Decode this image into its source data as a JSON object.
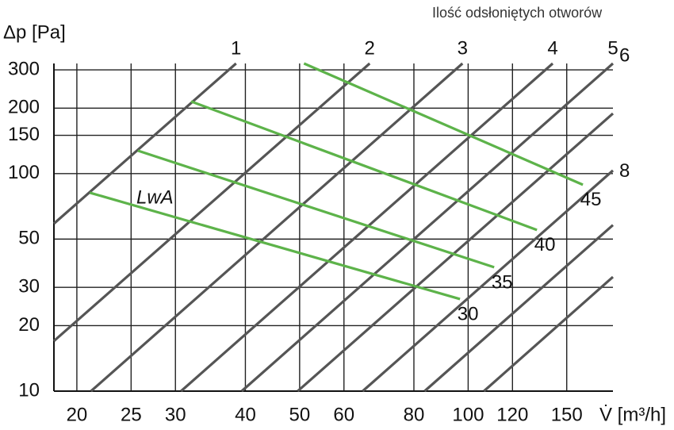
{
  "chart_data": {
    "type": "line",
    "annotation": "Ilość odsłoniętych otworów",
    "y_label": "Δp [Pa]",
    "x_label": "V̇ [m³/h]",
    "curve_label": "LwA",
    "xlog": true,
    "ylog": true,
    "grid": true,
    "xlim": [
      18.2,
      181.4
    ],
    "ylim": [
      10,
      321
    ],
    "xticks": [
      20,
      25,
      30,
      40,
      50,
      60,
      80,
      100,
      120,
      150
    ],
    "yticks": [
      10,
      20,
      30,
      50,
      100,
      150,
      200,
      300
    ],
    "series": [
      {
        "name": "1",
        "color": "#555555",
        "x": [
          18.2,
          38.5
        ],
        "values": [
          58.9,
          321
        ]
      },
      {
        "name": "2",
        "color": "#555555",
        "x": [
          18.2,
          66.7
        ],
        "values": [
          17,
          321
        ]
      },
      {
        "name": "3",
        "color": "#555555",
        "x": [
          21.2,
          97.7
        ],
        "values": [
          10,
          321
        ]
      },
      {
        "name": "4",
        "color": "#555555",
        "x": [
          30.7,
          141.6
        ],
        "values": [
          10,
          321
        ]
      },
      {
        "name": "5",
        "color": "#555555",
        "x": [
          39.4,
          181.4
        ],
        "values": [
          10,
          321
        ]
      },
      {
        "name": "6",
        "color": "#555555",
        "x": [
          49.6,
          181.4
        ],
        "values": [
          10,
          189
        ]
      },
      {
        "name": "8",
        "color": "#555555",
        "x": [
          64.8,
          181.4
        ],
        "values": [
          10,
          103.4
        ]
      },
      {
        "color": "#555555",
        "x": [
          83.6,
          181.4
        ],
        "values": [
          10,
          58
        ]
      },
      {
        "color": "#555555",
        "x": [
          106.7,
          181.4
        ],
        "values": [
          10,
          33.5
        ]
      },
      {
        "name": "45",
        "color": "#5db34a",
        "x": [
          50.9,
          160.3
        ],
        "values": [
          321,
          88.9
        ]
      },
      {
        "name": "40",
        "color": "#5db34a",
        "x": [
          32.0,
          132.7
        ],
        "values": [
          214.7,
          55.1
        ]
      },
      {
        "name": "35",
        "color": "#5db34a",
        "x": [
          25.7,
          111.3
        ],
        "values": [
          127.6,
          37.1
        ]
      },
      {
        "name": "30",
        "color": "#5db34a",
        "x": [
          21.1,
          96.7
        ],
        "values": [
          81.7,
          26.5
        ]
      }
    ]
  }
}
